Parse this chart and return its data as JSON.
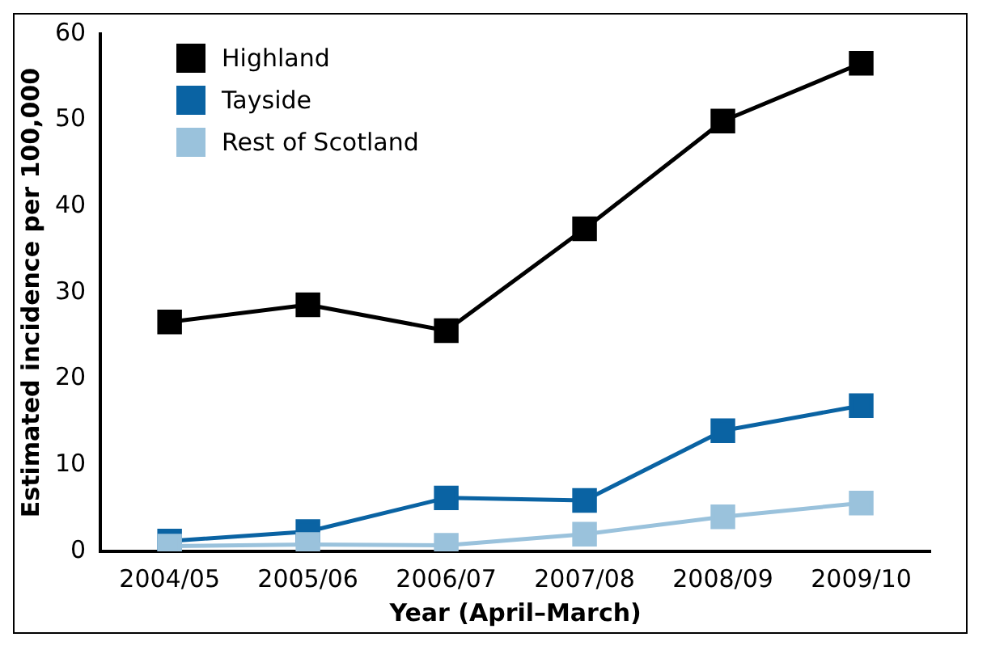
{
  "chart_data": {
    "type": "line",
    "xlabel": "Year (April–March)",
    "ylabel": "Estimated incidence per 100,000",
    "categories": [
      "2004/05",
      "2005/06",
      "2006/07",
      "2007/08",
      "2008/09",
      "2009/10"
    ],
    "series": [
      {
        "name": "Highland",
        "color": "#000000",
        "values": [
          26.6,
          28.6,
          25.6,
          37.4,
          49.9,
          56.6
        ]
      },
      {
        "name": "Tayside",
        "color": "#0a63a3",
        "values": [
          1.2,
          2.3,
          6.2,
          5.9,
          14.0,
          16.9
        ]
      },
      {
        "name": "Rest of Scotland",
        "color": "#9ac2dc",
        "values": [
          0.6,
          0.8,
          0.7,
          2.0,
          4.0,
          5.6
        ]
      }
    ],
    "ylim": [
      0,
      60
    ],
    "yticks": [
      0,
      10,
      20,
      30,
      40,
      50,
      60
    ],
    "grid": false,
    "legend": "top left",
    "marker": "square",
    "line_style": "solid"
  }
}
